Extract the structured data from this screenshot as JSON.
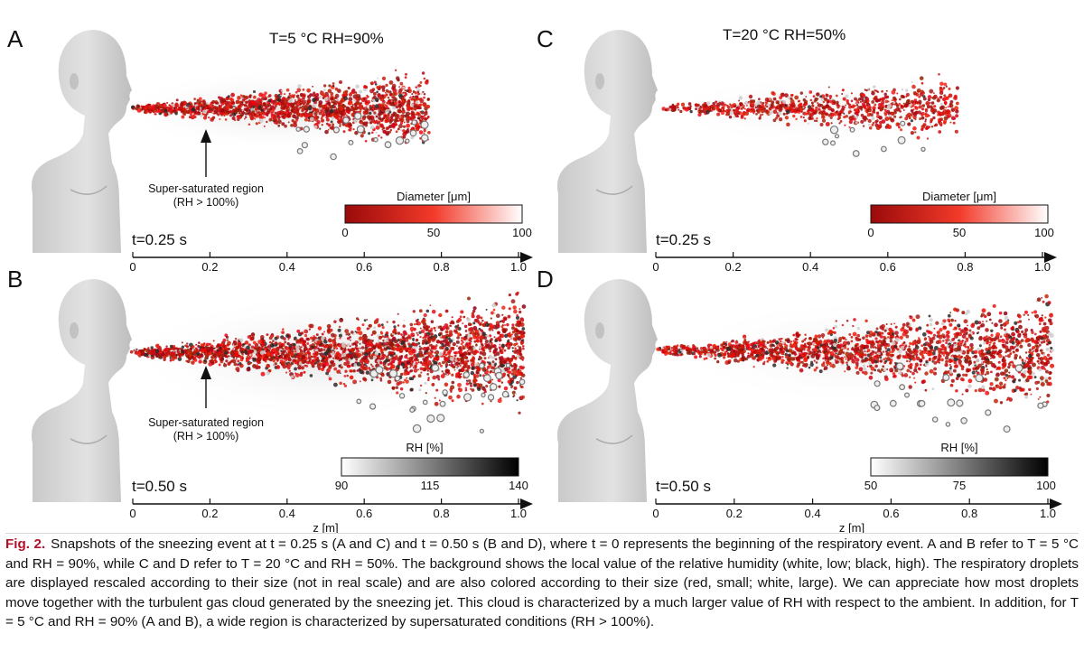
{
  "figure": {
    "panels": [
      {
        "id": "A",
        "letter": "A",
        "condition": "T=5 °C RH=90%",
        "time": "t=0.25 s",
        "colorbar": {
          "title": "Diameter [μm]",
          "ticks": [
            "0",
            "50",
            "100"
          ],
          "kind": "diameter"
        },
        "annotation": [
          "Super-saturated region",
          "(RH > 100%)"
        ],
        "axis_ticks": [
          "0",
          "0.2",
          "0.4",
          "0.6",
          "0.8",
          "1.0"
        ],
        "axis_label": ""
      },
      {
        "id": "C",
        "letter": "C",
        "condition": "T=20 °C RH=50%",
        "time": "t=0.25 s",
        "colorbar": {
          "title": "Diameter [μm]",
          "ticks": [
            "0",
            "50",
            "100"
          ],
          "kind": "diameter"
        },
        "annotation": [],
        "axis_ticks": [
          "0",
          "0.2",
          "0.4",
          "0.6",
          "0.8",
          "1.0"
        ],
        "axis_label": ""
      },
      {
        "id": "B",
        "letter": "B",
        "condition": "",
        "time": "t=0.50 s",
        "colorbar": {
          "title": "RH [%]",
          "ticks": [
            "90",
            "115",
            "140"
          ],
          "kind": "rh"
        },
        "annotation": [
          "Super-saturated region",
          "(RH > 100%)"
        ],
        "axis_ticks": [
          "0",
          "0.2",
          "0.4",
          "0.6",
          "0.8",
          "1.0"
        ],
        "axis_label": "z [m]"
      },
      {
        "id": "D",
        "letter": "D",
        "condition": "",
        "time": "t=0.50 s",
        "colorbar": {
          "title": "RH [%]",
          "ticks": [
            "50",
            "75",
            "100"
          ],
          "kind": "rh"
        },
        "annotation": [],
        "axis_ticks": [
          "0",
          "0.2",
          "0.4",
          "0.6",
          "0.8",
          "1.0"
        ],
        "axis_label": "z [m]"
      }
    ],
    "colors": {
      "droplet_small": "#b01010",
      "droplet_large": "#ffffff",
      "rh_low": "#ffffff",
      "rh_high": "#000000",
      "skin": "#d9d9d9"
    }
  },
  "caption": {
    "label": "Fig. 2.",
    "text": "Snapshots of the sneezing event at t = 0.25 s (A and C) and t = 0.50 s (B and D), where t = 0 represents the beginning of the respiratory event. A and B refer to T = 5 °C and RH = 90%, while C and D refer to T = 20 °C and RH = 50%. The background shows the local value of the relative humidity (white, low; black, high). The respiratory droplets are displayed rescaled according to their size (not in real scale) and are also colored according to their size (red, small; white, large). We can appreciate how most droplets move together with the turbulent gas cloud generated by the sneezing jet. This cloud is characterized by a much larger value of RH with respect to the ambient. In addition, for T = 5 °C and RH = 90% (A and B), a wide region is characterized by supersaturated conditions (RH > 100%)."
  }
}
